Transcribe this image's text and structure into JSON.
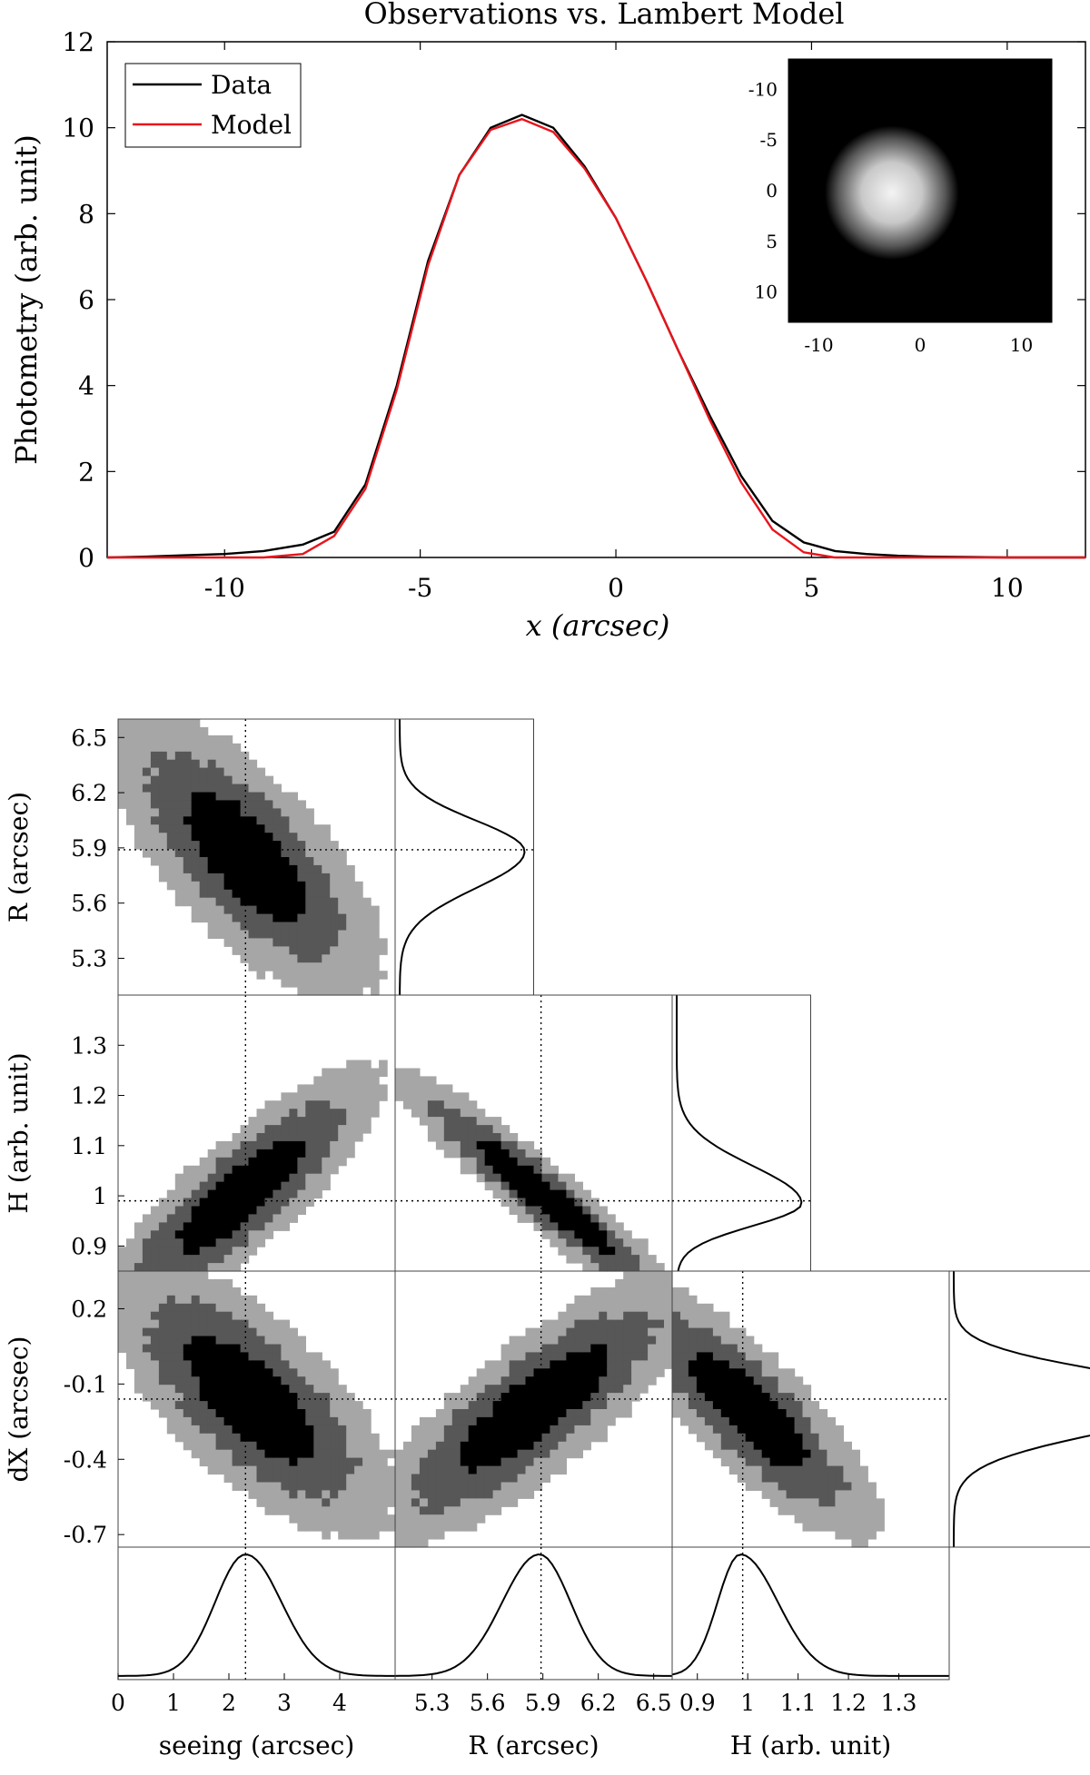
{
  "chart_data": [
    {
      "type": "line",
      "title": "Observations vs. Lambert Model",
      "xlabel": "x (arcsec)",
      "ylabel": "Photometry (arb. unit)",
      "xlim": [
        -13,
        12
      ],
      "ylim": [
        0,
        12
      ],
      "xticks": [
        -10,
        -5,
        0,
        5,
        10
      ],
      "yticks": [
        0,
        2,
        4,
        6,
        8,
        10,
        12
      ],
      "legend_position": "top-left",
      "x": [
        -13,
        -12,
        -11,
        -10,
        -9,
        -8,
        -7.2,
        -6.4,
        -5.6,
        -4.8,
        -4,
        -3.2,
        -2.4,
        -1.6,
        -0.8,
        0,
        0.8,
        1.6,
        2.4,
        3.2,
        4,
        4.8,
        5.6,
        6.4,
        7.2,
        8,
        9,
        10,
        11,
        12
      ],
      "series": [
        {
          "name": "Data",
          "color": "#000000",
          "values": [
            0,
            0.02,
            0.05,
            0.08,
            0.15,
            0.3,
            0.6,
            1.7,
            4,
            6.9,
            8.9,
            10,
            10.3,
            10,
            9.1,
            7.9,
            6.4,
            4.8,
            3.3,
            1.9,
            0.85,
            0.35,
            0.15,
            0.08,
            0.04,
            0.02,
            0.01,
            0,
            0,
            0
          ]
        },
        {
          "name": "Model",
          "color": "#e8141c",
          "values": [
            0,
            0,
            0,
            0,
            0,
            0.08,
            0.5,
            1.6,
            3.9,
            6.8,
            8.9,
            9.95,
            10.2,
            9.9,
            9.05,
            7.9,
            6.4,
            4.8,
            3.2,
            1.75,
            0.65,
            0.12,
            0,
            0,
            0,
            0,
            0,
            0,
            0,
            0
          ]
        }
      ],
      "inset": {
        "type": "heatmap",
        "xticks": [
          -10,
          0,
          10
        ],
        "yticks": [
          -10,
          -5,
          0,
          5,
          10
        ],
        "range": [
          -13,
          13
        ],
        "blob_center": [
          -2.8,
          0.2
        ],
        "blob_radius": 4.9
      }
    },
    {
      "type": "heatmap",
      "subtype": "corner-plot",
      "parameters": [
        {
          "key": "seeing",
          "label": "seeing (arcsec)",
          "range": [
            0,
            5
          ],
          "ticks": [
            0,
            1,
            2,
            3,
            4
          ],
          "best": 2.3
        },
        {
          "key": "R",
          "label": "R (arcsec)",
          "range": [
            5.1,
            6.6
          ],
          "ticks": [
            5.3,
            5.6,
            5.9,
            6.2,
            6.5
          ],
          "best": 5.89
        },
        {
          "key": "H",
          "label": "H (arb. unit)",
          "range": [
            0.85,
            1.4
          ],
          "ticks": [
            0.9,
            1,
            1.1,
            1.2,
            1.3
          ],
          "best": 0.99
        },
        {
          "key": "dX",
          "label": "dX (arcsec)",
          "range": [
            -0.75,
            0.35
          ],
          "ticks": [
            -0.7,
            -0.4,
            -0.1,
            0.2
          ],
          "best": -0.16
        }
      ],
      "row_labels": [
        {
          "label": "R (arcsec)",
          "ticks": [
            "5.3",
            "5.6",
            "5.9",
            "6.2",
            "6.5"
          ]
        },
        {
          "label": "H (arb. unit)",
          "ticks": [
            "0.9",
            "1",
            "1.1",
            "1.2",
            "1.3"
          ]
        },
        {
          "label": "dX (arcsec)",
          "ticks": [
            "-0.7",
            "-0.4",
            "-0.1",
            "0.2"
          ]
        }
      ],
      "col_labels": [
        {
          "label": "seeing (arcsec)",
          "ticks": [
            "0",
            "1",
            "2",
            "3",
            "4"
          ]
        },
        {
          "label": "R (arcsec)",
          "ticks": [
            "5.3",
            "5.6",
            "5.9",
            "6.2",
            "6.5"
          ]
        },
        {
          "label": "H (arb. unit)",
          "ticks": [
            "0.9",
            "1",
            "1.1",
            "1.2",
            "1.3"
          ]
        }
      ],
      "panels": [
        {
          "row": "R",
          "col": "seeing",
          "center": [
            2.3,
            5.85
          ],
          "sigma": [
            0.75,
            0.24
          ],
          "rho": -0.7
        },
        {
          "row": "H",
          "col": "seeing",
          "center": [
            2.2,
            1.0
          ],
          "sigma": [
            0.8,
            0.08
          ],
          "rho": 0.85
        },
        {
          "row": "H",
          "col": "R",
          "center": [
            5.9,
            1.0
          ],
          "sigma": [
            0.26,
            0.08
          ],
          "rho": -0.95
        },
        {
          "row": "dX",
          "col": "seeing",
          "center": [
            2.4,
            -0.16
          ],
          "sigma": [
            0.8,
            0.17
          ],
          "rho": -0.7
        },
        {
          "row": "dX",
          "col": "R",
          "center": [
            5.85,
            -0.2
          ],
          "sigma": [
            0.28,
            0.17
          ],
          "rho": 0.82
        },
        {
          "row": "dX",
          "col": "H",
          "center": [
            1.0,
            -0.2
          ],
          "sigma": [
            0.08,
            0.16
          ],
          "rho": -0.82
        }
      ],
      "marginals": [
        {
          "param": "seeing",
          "peak": 2.3,
          "width_left": 0.55,
          "width_right": 0.65
        },
        {
          "param": "R",
          "peak": 5.88,
          "width_left": 0.2,
          "width_right": 0.17
        },
        {
          "param": "H",
          "peak": 0.985,
          "width_left": 0.045,
          "width_right": 0.075
        },
        {
          "param": "dX",
          "peak": -0.16,
          "width_left": 0.13,
          "width_right": 0.11
        }
      ]
    }
  ]
}
